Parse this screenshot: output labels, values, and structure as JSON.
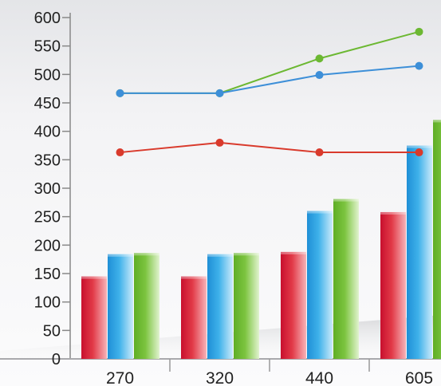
{
  "chart_data": {
    "type": "bar",
    "title": "",
    "xlabel": "",
    "ylabel": "",
    "categories": [
      "270",
      "320",
      "440",
      "605"
    ],
    "ylim": [
      0,
      600
    ],
    "yticks": [
      0,
      50,
      100,
      150,
      200,
      250,
      300,
      350,
      400,
      450,
      500,
      550,
      600
    ],
    "bar_series": [
      {
        "color": "#e0303f",
        "values": [
          145,
          145,
          188,
          258
        ]
      },
      {
        "color": "#35a8e4",
        "values": [
          184,
          184,
          260,
          375
        ]
      },
      {
        "color": "#6cb832",
        "values": [
          186,
          186,
          281,
          420
        ]
      }
    ],
    "line_series": [
      {
        "color": "#6cb832",
        "values": [
          467,
          467,
          528,
          575
        ]
      },
      {
        "color": "#3d8fd8",
        "values": [
          467,
          467,
          499,
          515
        ]
      },
      {
        "color": "#d93a2c",
        "values": [
          363,
          380,
          363,
          363
        ]
      }
    ],
    "grid": false,
    "legend": "none"
  }
}
